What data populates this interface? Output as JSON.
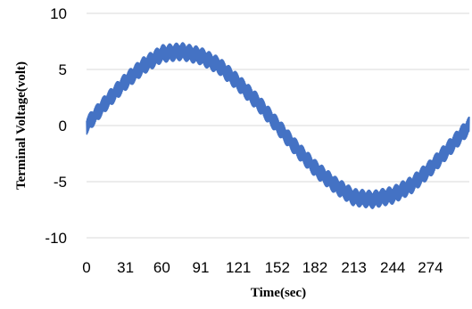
{
  "chart_data": {
    "type": "line",
    "title": "",
    "xlabel": "Time(sec)",
    "ylabel": "Terminal Voltage(volt)",
    "xlim": [
      0,
      305
    ],
    "ylim": [
      -10,
      10
    ],
    "x_ticks": [
      0,
      31,
      60,
      91,
      121,
      152,
      182,
      213,
      244,
      274
    ],
    "y_ticks": [
      10,
      5,
      0,
      -5,
      -10
    ],
    "grid": true,
    "legend": "none",
    "line_color": "#4472C4",
    "series": [
      {
        "x": [
          0,
          15,
          30,
          45,
          60,
          76,
          91,
          106,
          121,
          137,
          152,
          167,
          182,
          198,
          213,
          228,
          244,
          259,
          274,
          289,
          305
        ],
        "y": [
          0.0,
          2.0,
          3.8,
          5.3,
          6.4,
          6.6,
          6.2,
          5.3,
          3.8,
          2.0,
          0.0,
          -2.0,
          -3.8,
          -5.3,
          -6.4,
          -6.6,
          -6.2,
          -5.3,
          -3.8,
          -2.0,
          0.0
        ],
        "noise_band": 0.8
      }
    ]
  }
}
